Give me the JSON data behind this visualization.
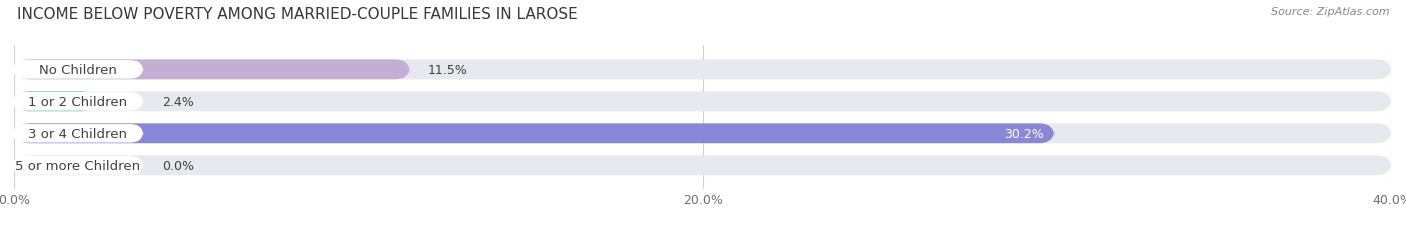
{
  "title": "INCOME BELOW POVERTY AMONG MARRIED-COUPLE FAMILIES IN LAROSE",
  "source": "Source: ZipAtlas.com",
  "categories": [
    "No Children",
    "1 or 2 Children",
    "3 or 4 Children",
    "5 or more Children"
  ],
  "values": [
    11.5,
    2.4,
    30.2,
    0.0
  ],
  "bar_colors": [
    "#c4aed4",
    "#5ec4b8",
    "#8888d8",
    "#f4aac0"
  ],
  "bg_bar_color": "#e8e8f0",
  "xlim": [
    0,
    40
  ],
  "xtick_labels": [
    "0.0%",
    "20.0%",
    "40.0%"
  ],
  "title_fontsize": 11,
  "label_fontsize": 9.5,
  "value_fontsize": 9,
  "bar_height": 0.62,
  "title_color": "#383838",
  "source_color": "#888888",
  "label_color": "#404040",
  "value_color_dark": "#404040",
  "value_color_white": "#ffffff",
  "background_color": "#ffffff"
}
